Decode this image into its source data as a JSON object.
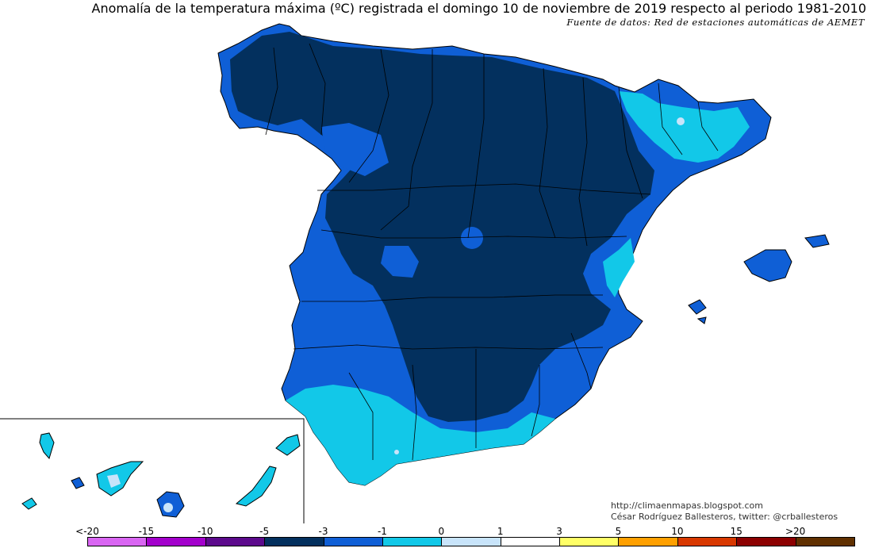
{
  "title": "Anomalía de la temperatura máxima (ºC) registrada el domingo 10 de noviembre de 2019 respecto al periodo 1981-2010",
  "source": "Fuente de datos: Red de estaciones automáticas de AEMET",
  "credit": {
    "url": "http://climaenmapas.blogspot.com",
    "author": "César Rodríguez Ballesteros, twitter: @crballesteros"
  },
  "legend": {
    "labels": [
      "<-20",
      "-15",
      "-10",
      "-5",
      "-3",
      "-1",
      "0",
      "1",
      "3",
      "5",
      "10",
      "15",
      ">20"
    ],
    "colors": [
      "#d966f2",
      "#a300cc",
      "#5c0a8c",
      "#03305e",
      "#0f5fd6",
      "#12c8e8",
      "#c8e4fa",
      "#ffffff",
      "#ffff66",
      "#ffa000",
      "#d83800",
      "#8c0000",
      "#603000"
    ]
  },
  "colors": {
    "dark_navy": "#03305e",
    "blue": "#0f5fd6",
    "cyan": "#12c8e8",
    "light_blue": "#c8e4fa"
  }
}
